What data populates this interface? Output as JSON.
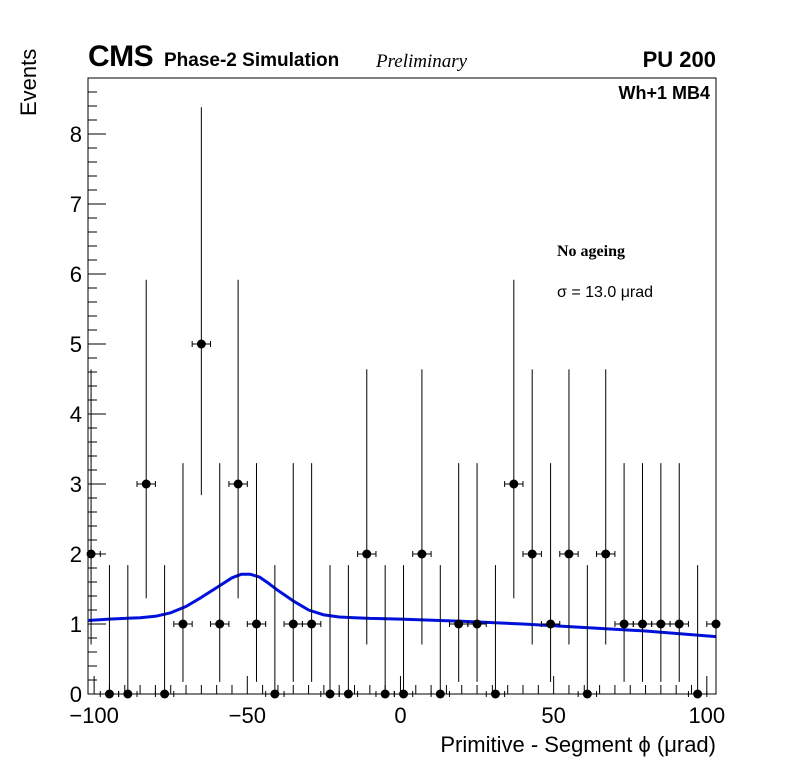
{
  "header": {
    "experiment": "CMS",
    "subtitle": "Phase-2 Simulation",
    "status": "Preliminary",
    "pileup": "PU 200"
  },
  "panel": {
    "sample": "Wh+1 MB4",
    "condition": "No ageing",
    "resolution": "σ = 13.0  μrad"
  },
  "colors": {
    "fit": "#0011dd",
    "points": "#000000",
    "background": "#ffffff"
  },
  "chart_data": {
    "type": "scatter",
    "title": "",
    "xlabel": "Primitive - Segment ϕ (μrad)",
    "ylabel": "Events",
    "xlim": [
      -102,
      103
    ],
    "ylim": [
      0,
      8.8
    ],
    "grid": false,
    "x_ticks": [
      -100,
      -50,
      0,
      50,
      100
    ],
    "x_tick_labels": [
      "−100",
      "−50",
      "0",
      "50",
      "100"
    ],
    "y_ticks": [
      0,
      1,
      2,
      3,
      4,
      5,
      6,
      7,
      8
    ],
    "y_tick_labels": [
      "0",
      "1",
      "2",
      "3",
      "4",
      "5",
      "6",
      "7",
      "8"
    ],
    "bin_half_width": 3,
    "series": [
      {
        "name": "Data",
        "style": "points_with_poisson_errors",
        "x": [
          -101,
          -95,
          -89,
          -83,
          -77,
          -71,
          -65,
          -59,
          -53,
          -47,
          -41,
          -35,
          -29,
          -23,
          -17,
          -11,
          -5,
          1,
          7,
          13,
          19,
          25,
          31,
          37,
          43,
          49,
          55,
          61,
          67,
          73,
          79,
          85,
          91,
          97,
          103
        ],
        "y": [
          2,
          0,
          0,
          3,
          0,
          1,
          5,
          1,
          3,
          1,
          0,
          1,
          1,
          0,
          0,
          2,
          0,
          0,
          2,
          0,
          1,
          1,
          0,
          3,
          2,
          1,
          2,
          0,
          2,
          1,
          1,
          1,
          1,
          0,
          1
        ]
      },
      {
        "name": "Fit",
        "style": "line",
        "x": [
          -102,
          -95,
          -90,
          -85,
          -80,
          -75,
          -70,
          -65,
          -60,
          -55,
          -52,
          -49,
          -46,
          -43,
          -40,
          -35,
          -30,
          -25,
          -20,
          -15,
          -10,
          0,
          20,
          40,
          60,
          80,
          103
        ],
        "y": [
          1.05,
          1.07,
          1.08,
          1.09,
          1.11,
          1.16,
          1.25,
          1.38,
          1.52,
          1.66,
          1.71,
          1.71,
          1.67,
          1.58,
          1.48,
          1.33,
          1.2,
          1.13,
          1.1,
          1.09,
          1.08,
          1.07,
          1.04,
          1.0,
          0.95,
          0.9,
          0.82
        ]
      }
    ]
  }
}
